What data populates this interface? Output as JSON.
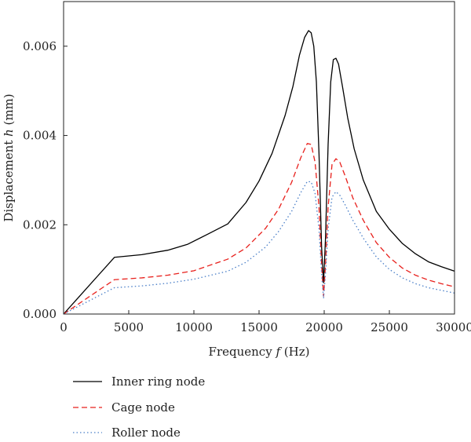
{
  "chart_data": {
    "type": "line",
    "xlabel": {
      "pre": "Frequency ",
      "var": "f",
      "post": " (Hz)"
    },
    "ylabel": {
      "pre": "Displacement ",
      "var": "h",
      "post": " (mm)"
    },
    "xlim": [
      0,
      30000
    ],
    "ylim": [
      0,
      0.007
    ],
    "xticks": [
      0,
      5000,
      10000,
      15000,
      20000,
      25000,
      30000
    ],
    "xtick_labels": [
      "0",
      "5000",
      "10000",
      "15000",
      "20000",
      "25000",
      "30000"
    ],
    "yticks": [
      0,
      0.002,
      0.004,
      0.006
    ],
    "ytick_labels": [
      "0.000",
      "0.002",
      "0.004",
      "0.006"
    ],
    "grid": false,
    "legend_position": "below",
    "series": [
      {
        "name": "Inner ring node",
        "color": "#000000",
        "dash": "solid",
        "x": [
          0,
          3900,
          6000,
          8000,
          9500,
          11000,
          12600,
          14000,
          15000,
          16000,
          17000,
          17600,
          18100,
          18500,
          18800,
          19000,
          19200,
          19400,
          19600,
          19800,
          19950,
          20100,
          20300,
          20500,
          20700,
          20900,
          21100,
          21400,
          21800,
          22300,
          23000,
          24000,
          25000,
          26000,
          27000,
          28000,
          29000,
          30000
        ],
        "y": [
          0,
          0.00127,
          0.00133,
          0.00143,
          0.00156,
          0.00178,
          0.00202,
          0.0025,
          0.00298,
          0.0036,
          0.00445,
          0.0051,
          0.0058,
          0.0062,
          0.00635,
          0.0063,
          0.006,
          0.0052,
          0.0036,
          0.0015,
          0.0007,
          0.0017,
          0.0038,
          0.0052,
          0.0057,
          0.00573,
          0.0056,
          0.0051,
          0.0044,
          0.0037,
          0.003,
          0.0023,
          0.0019,
          0.00158,
          0.00135,
          0.00117,
          0.00106,
          0.00096
        ]
      },
      {
        "name": "Cage node",
        "color": "#e8201c",
        "dash": "dashed",
        "x": [
          0,
          3900,
          6000,
          8000,
          10000,
          12600,
          14000,
          15500,
          16500,
          17500,
          18200,
          18700,
          19000,
          19300,
          19600,
          19800,
          19950,
          20100,
          20300,
          20600,
          20900,
          21200,
          21600,
          22200,
          23000,
          24000,
          25000,
          26000,
          27000,
          28000,
          29000,
          30000
        ],
        "y": [
          0,
          0.00077,
          0.00081,
          0.00087,
          0.00097,
          0.00123,
          0.00148,
          0.00192,
          0.00235,
          0.00295,
          0.0035,
          0.00382,
          0.0038,
          0.0034,
          0.0024,
          0.0011,
          0.0004,
          0.0011,
          0.0024,
          0.00335,
          0.00348,
          0.0034,
          0.0031,
          0.0026,
          0.0021,
          0.0016,
          0.00127,
          0.00103,
          0.00087,
          0.00076,
          0.00068,
          0.00061
        ]
      },
      {
        "name": "Roller node",
        "color": "#4a7fc8",
        "dash": "dotted",
        "x": [
          0,
          3900,
          6000,
          8000,
          10000,
          12600,
          14000,
          15500,
          16500,
          17500,
          18200,
          18700,
          19000,
          19300,
          19600,
          19800,
          19950,
          20100,
          20300,
          20600,
          20900,
          21200,
          21600,
          22200,
          23000,
          24000,
          25000,
          26000,
          27000,
          28000,
          29000,
          30000
        ],
        "y": [
          0,
          0.00059,
          0.00063,
          0.00069,
          0.00078,
          0.00096,
          0.00116,
          0.0015,
          0.00185,
          0.0023,
          0.00272,
          0.00297,
          0.00296,
          0.0027,
          0.0019,
          0.0009,
          0.00035,
          0.0009,
          0.0019,
          0.00262,
          0.00274,
          0.00266,
          0.00245,
          0.0021,
          0.0017,
          0.00128,
          0.001,
          0.00081,
          0.00068,
          0.00059,
          0.00053,
          0.00047
        ]
      }
    ]
  }
}
